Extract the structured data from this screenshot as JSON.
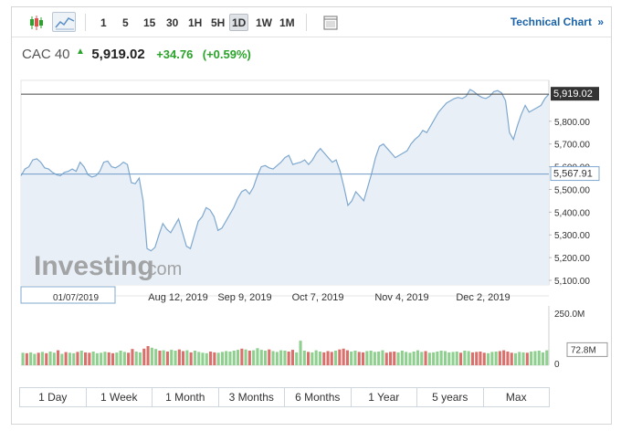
{
  "toolbar": {
    "intervals": [
      "1",
      "5",
      "15",
      "30",
      "1H",
      "5H",
      "1D",
      "1W",
      "1M"
    ],
    "active_interval": "1D",
    "technical_chart_label": "Technical Chart",
    "technical_chart_chevron": "»"
  },
  "quote": {
    "name": "CAC 40",
    "direction_icon": "up-triangle-icon",
    "price": "5,919.02",
    "change": "+34.76",
    "change_pct": "(+0.59%)"
  },
  "colors": {
    "up": "#2aa32a",
    "down": "#d9534f",
    "line": "#7fa8cf",
    "area": "#e8eff6",
    "link": "#1a63a8"
  },
  "chart_data": {
    "type": "area",
    "y_ticks": [
      "5,100.00",
      "5,200.00",
      "5,300.00",
      "5,400.00",
      "5,500.00",
      "5,600.00",
      "5,700.00",
      "5,800.00"
    ],
    "ylim": [
      5080,
      5980
    ],
    "x_ticks": [
      "01/07/2019",
      "Aug 12, 2019",
      "Sep 9, 2019",
      "Oct 7, 2019",
      "Nov 4, 2019",
      "Dec 2, 2019"
    ],
    "current_price_label": "5,919.02",
    "current_price": 5919.02,
    "reference_label": "5,567.91",
    "reference_price": 5567.91,
    "values": [
      5560,
      5590,
      5600,
      5630,
      5635,
      5620,
      5595,
      5590,
      5575,
      5565,
      5560,
      5575,
      5580,
      5590,
      5580,
      5620,
      5600,
      5565,
      5555,
      5560,
      5580,
      5620,
      5625,
      5600,
      5595,
      5605,
      5620,
      5610,
      5530,
      5525,
      5550,
      5450,
      5240,
      5230,
      5245,
      5300,
      5350,
      5325,
      5310,
      5340,
      5370,
      5310,
      5250,
      5240,
      5300,
      5360,
      5380,
      5420,
      5410,
      5380,
      5320,
      5330,
      5360,
      5390,
      5420,
      5460,
      5490,
      5500,
      5480,
      5510,
      5560,
      5600,
      5605,
      5595,
      5590,
      5605,
      5620,
      5640,
      5650,
      5610,
      5615,
      5620,
      5630,
      5610,
      5630,
      5660,
      5680,
      5660,
      5640,
      5620,
      5630,
      5580,
      5510,
      5430,
      5450,
      5490,
      5470,
      5450,
      5510,
      5570,
      5640,
      5690,
      5700,
      5680,
      5660,
      5640,
      5650,
      5660,
      5670,
      5700,
      5720,
      5735,
      5760,
      5750,
      5780,
      5810,
      5840,
      5860,
      5880,
      5890,
      5900,
      5905,
      5900,
      5910,
      5940,
      5930,
      5915,
      5905,
      5900,
      5910,
      5930,
      5935,
      5925,
      5890,
      5750,
      5720,
      5780,
      5830,
      5870,
      5840,
      5850,
      5860,
      5870,
      5900,
      5919
    ],
    "volume_ylim": [
      0,
      250
    ],
    "volume_ticks": [
      "250.0M",
      "0"
    ],
    "volume_current_label": "72.8M",
    "volume_current": 72.8,
    "volume": [
      60,
      58,
      62,
      55,
      60,
      64,
      58,
      66,
      60,
      72,
      55,
      63,
      60,
      58,
      64,
      70,
      62,
      60,
      66,
      58,
      60,
      65,
      62,
      58,
      61,
      70,
      64,
      60,
      78,
      66,
      62,
      80,
      92,
      84,
      78,
      70,
      72,
      66,
      74,
      70,
      76,
      68,
      72,
      62,
      70,
      64,
      60,
      58,
      66,
      62,
      60,
      64,
      68,
      66,
      70,
      74,
      80,
      76,
      70,
      72,
      82,
      74,
      70,
      76,
      68,
      64,
      72,
      70,
      66,
      74,
      62,
      118,
      70,
      64,
      62,
      72,
      66,
      62,
      68,
      64,
      70,
      76,
      80,
      72,
      66,
      70,
      64,
      62,
      68,
      70,
      64,
      66,
      72,
      60,
      64,
      66,
      62,
      70,
      64,
      60,
      66,
      72,
      64,
      68,
      60,
      62,
      66,
      70,
      68,
      62,
      64,
      66,
      60,
      70,
      68,
      62,
      64,
      66,
      60,
      58,
      64,
      66,
      68,
      72,
      66,
      60,
      58,
      64,
      62,
      60,
      66,
      68,
      70,
      62,
      72
    ],
    "volume_up": [
      true,
      false,
      true,
      true,
      false,
      true,
      false,
      true,
      true,
      false,
      true,
      false,
      true,
      true,
      false,
      true,
      false,
      false,
      true,
      true,
      true,
      true,
      false,
      false,
      true,
      true,
      true,
      false,
      false,
      true,
      true,
      false,
      false,
      true,
      true,
      false,
      true,
      false,
      true,
      true,
      false,
      false,
      true,
      false,
      true,
      true,
      true,
      true,
      false,
      false,
      true,
      true,
      true,
      true,
      true,
      true,
      false,
      true,
      false,
      true,
      true,
      true,
      true,
      false,
      true,
      true,
      true,
      true,
      false,
      false,
      true,
      true,
      true,
      false,
      true,
      true,
      true,
      false,
      false,
      false,
      true,
      false,
      false,
      false,
      true,
      true,
      false,
      false,
      true,
      true,
      true,
      true,
      true,
      false,
      false,
      false,
      true,
      true,
      true,
      true,
      true,
      true,
      true,
      false,
      true,
      true,
      true,
      true,
      true,
      true,
      true,
      true,
      false,
      true,
      true,
      false,
      false,
      false,
      false,
      true,
      true,
      true,
      false,
      false,
      false,
      false,
      true,
      true,
      true,
      false,
      true,
      true,
      true,
      true,
      true
    ]
  },
  "watermark": {
    "brand": "Investing",
    "suffix": ".com"
  },
  "periods": [
    "1 Day",
    "1 Week",
    "1 Month",
    "3 Months",
    "6 Months",
    "1 Year",
    "5 years",
    "Max"
  ]
}
